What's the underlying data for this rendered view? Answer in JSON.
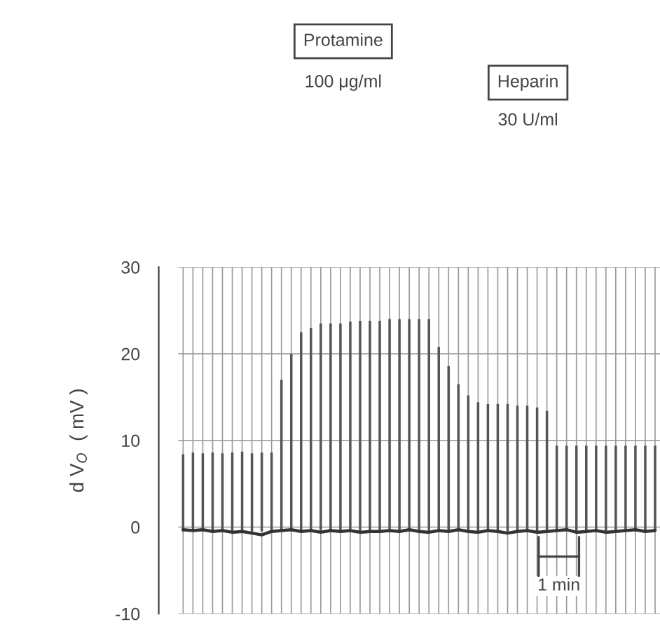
{
  "chart_data": {
    "type": "bar",
    "ylabel": "d V$_{O}$  ( mV )",
    "ylim": [
      -10,
      30
    ],
    "yticks": [
      -10,
      0,
      10,
      20,
      30
    ],
    "grid": true,
    "categories": [
      null,
      null,
      null,
      null,
      null,
      null,
      null,
      null,
      null,
      null,
      null,
      null,
      null,
      null,
      null,
      null,
      null,
      null,
      null,
      null,
      null,
      null,
      null,
      null,
      null,
      null,
      null,
      null,
      null,
      null,
      null,
      null,
      null,
      null,
      null,
      null,
      null,
      null,
      null,
      null,
      null,
      null,
      null,
      null,
      null,
      null,
      null,
      null,
      null
    ],
    "series": [
      {
        "color": "#555555",
        "base": [
          -0.5,
          -0.5,
          -0.5,
          -0.5,
          -0.5,
          -0.5,
          -0.5,
          -0.5,
          -0.5,
          -0.5,
          -0.5,
          -0.5,
          -0.5,
          -0.5,
          -0.5,
          -0.5,
          -0.5,
          -0.5,
          -0.5,
          -0.5,
          -0.5,
          -0.5,
          -0.5,
          -0.5,
          -0.5,
          -0.5,
          -0.5,
          -0.5,
          -0.5,
          -0.5,
          -0.5,
          -0.5,
          -0.5,
          -0.5,
          -0.5,
          -0.5,
          -0.5,
          -0.5,
          -0.5,
          -0.5,
          -0.5,
          -0.5,
          -0.5,
          -0.5,
          -0.5,
          -0.5,
          -0.5,
          -0.5,
          -0.5
        ],
        "values": [
          8.9,
          9.1,
          9,
          9.1,
          9,
          9.1,
          9.2,
          9,
          9.1,
          9.1,
          17.5,
          20.5,
          23,
          23.5,
          24,
          24,
          24,
          24.2,
          24.3,
          24.3,
          24.3,
          24.5,
          24.5,
          24.5,
          24.5,
          24.5,
          21.3,
          19.1,
          17,
          15.7,
          14.9,
          14.7,
          14.7,
          14.7,
          14.5,
          14.5,
          14.3,
          13.9,
          9.9,
          9.9,
          9.9,
          9.9,
          9.9,
          9.9,
          9.9,
          9.9,
          9.9,
          9.9,
          9.9
        ]
      },
      {
        "type": "line",
        "color": "#333333",
        "values": [
          -0.3,
          -0.4,
          -0.3,
          -0.5,
          -0.4,
          -0.6,
          -0.5,
          -0.7,
          -0.9,
          -0.5,
          -0.4,
          -0.3,
          -0.5,
          -0.4,
          -0.6,
          -0.4,
          -0.5,
          -0.4,
          -0.6,
          -0.5,
          -0.5,
          -0.4,
          -0.5,
          -0.3,
          -0.5,
          -0.6,
          -0.4,
          -0.5,
          -0.3,
          -0.5,
          -0.6,
          -0.4,
          -0.5,
          -0.7,
          -0.5,
          -0.4,
          -0.6,
          -0.5,
          -0.4,
          -0.3,
          -0.6,
          -0.5,
          -0.4,
          -0.6,
          -0.5,
          -0.4,
          -0.3,
          -0.5,
          -0.4
        ]
      }
    ],
    "annotations": [
      "Protamine",
      "100 μg/ml",
      "Heparin",
      "30 U/ml",
      "1 min"
    ]
  }
}
